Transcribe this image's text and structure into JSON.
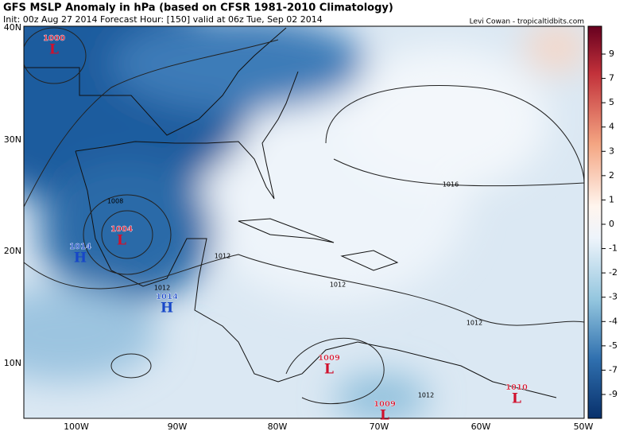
{
  "header": {
    "title": "GFS MSLP Anomaly in hPa (based on CFSR 1981-2010 Climatology)",
    "init": "Init: 00z Aug 27 2014 Forecast Hour: [150] valid at 06z Tue, Sep 02 2014",
    "credit": "Levi Cowan - tropicaltidbits.com"
  },
  "map": {
    "lat_labels": [
      "40N",
      "30N",
      "20N",
      "10N"
    ],
    "lon_labels": [
      "100W",
      "90W",
      "80W",
      "70W",
      "60W",
      "50W"
    ],
    "centers": [
      {
        "pressure": 1000,
        "type": "L"
      },
      {
        "pressure": 1004,
        "type": "L"
      },
      {
        "pressure": 1014,
        "type": "H"
      },
      {
        "pressure": 1014,
        "type": "H"
      },
      {
        "pressure": 1009,
        "type": "L"
      },
      {
        "pressure": 1009,
        "type": "L"
      },
      {
        "pressure": 1010,
        "type": "L"
      }
    ],
    "isobar_labels": [
      1008,
      1012,
      1012,
      1012,
      1016,
      1012,
      1012
    ]
  },
  "colorbar": {
    "labels": [
      9,
      7,
      5,
      4,
      3,
      2,
      1,
      0,
      -1,
      -2,
      -3,
      -4,
      -5,
      -7,
      -9
    ]
  }
}
